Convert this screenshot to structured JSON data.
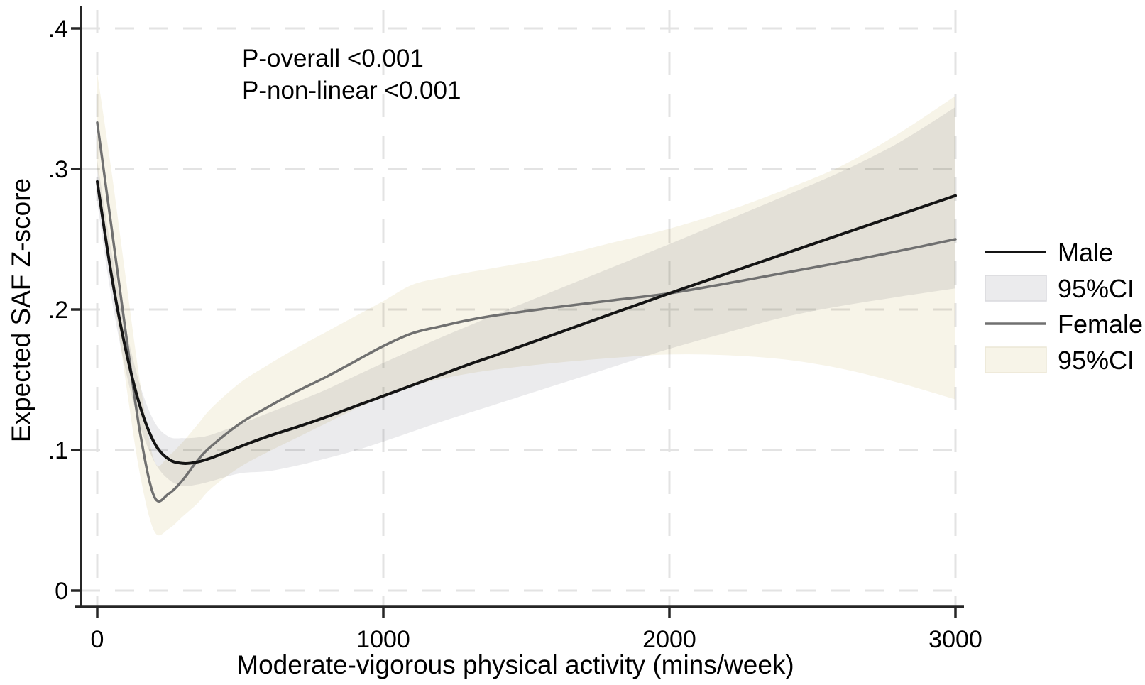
{
  "page": {
    "background": "#ffffff"
  },
  "chart_data": {
    "type": "line",
    "title": "",
    "xlabel": "Moderate-vigorous physical activity (mins/week)",
    "ylabel": "Expected SAF Z-score",
    "xlim": [
      0,
      3000
    ],
    "ylim": [
      0,
      0.4
    ],
    "grid": "dashed",
    "legend_position": "right-middle",
    "annotations": [
      "P-overall <0.001",
      "P-non-linear <0.001"
    ],
    "x_ticks": [
      {
        "v": 0,
        "label": "0"
      },
      {
        "v": 1000,
        "label": "1000"
      },
      {
        "v": 2000,
        "label": "2000"
      },
      {
        "v": 3000,
        "label": "3000"
      }
    ],
    "y_ticks": [
      {
        "v": 0,
        "label": "0"
      },
      {
        "v": 0.1,
        "label": ".1"
      },
      {
        "v": 0.2,
        "label": ".2"
      },
      {
        "v": 0.3,
        "label": ".3"
      },
      {
        "v": 0.4,
        "label": ".4"
      }
    ],
    "x": [
      0,
      50,
      100,
      150,
      200,
      250,
      300,
      350,
      400,
      500,
      600,
      700,
      800,
      900,
      1000,
      1100,
      1200,
      1300,
      1400,
      1600,
      1800,
      2000,
      2200,
      2400,
      2600,
      2800,
      3000
    ],
    "series": [
      {
        "name": "Male",
        "color": "#141414",
        "line_width": 4,
        "values": [
          0.291,
          0.224,
          0.171,
          0.131,
          0.105,
          0.0935,
          0.0905,
          0.0915,
          0.0945,
          0.1025,
          0.11,
          0.1165,
          0.1235,
          0.131,
          0.1385,
          0.146,
          0.1535,
          0.161,
          0.168,
          0.1825,
          0.197,
          0.2115,
          0.2255,
          0.2395,
          0.2535,
          0.2672,
          0.281
        ],
        "ci": {
          "label": "95%CI",
          "color": "#ebebed",
          "lower": [
            0.276,
            0.208,
            0.156,
            0.117,
            0.0915,
            0.079,
            0.0745,
            0.0755,
            0.078,
            0.0835,
            0.085,
            0.089,
            0.094,
            0.0995,
            0.106,
            0.113,
            0.12,
            0.1265,
            0.133,
            0.146,
            0.159,
            0.172,
            0.1835,
            0.1945,
            0.2025,
            0.209,
            0.215
          ],
          "upper": [
            0.306,
            0.241,
            0.187,
            0.146,
            0.12,
            0.1095,
            0.1085,
            0.109,
            0.111,
            0.1185,
            0.1265,
            0.1345,
            0.143,
            0.1525,
            0.162,
            0.171,
            0.18,
            0.1885,
            0.197,
            0.2135,
            0.23,
            0.2465,
            0.2635,
            0.2805,
            0.298,
            0.3185,
            0.344
          ]
        }
      },
      {
        "name": "Female",
        "color": "#707070",
        "line_width": 3.5,
        "values": [
          0.333,
          0.258,
          0.183,
          0.112,
          0.0665,
          0.069,
          0.079,
          0.0925,
          0.103,
          0.119,
          0.131,
          0.142,
          0.152,
          0.163,
          0.174,
          0.183,
          0.188,
          0.1925,
          0.196,
          0.2015,
          0.2065,
          0.2115,
          0.2185,
          0.226,
          0.2335,
          0.2415,
          0.25
        ],
        "ci": {
          "label": "95%CI",
          "color": "#f7f4e8",
          "lower": [
            0.3,
            0.222,
            0.148,
            0.082,
            0.042,
            0.044,
            0.053,
            0.062,
            0.073,
            0.088,
            0.099,
            0.109,
            0.119,
            0.129,
            0.138,
            0.1455,
            0.1505,
            0.1545,
            0.1575,
            0.162,
            0.1655,
            0.168,
            0.1675,
            0.1645,
            0.158,
            0.148,
            0.136
          ],
          "upper": [
            0.368,
            0.298,
            0.222,
            0.148,
            0.092,
            0.096,
            0.106,
            0.118,
            0.13,
            0.148,
            0.161,
            0.173,
            0.184,
            0.195,
            0.206,
            0.2175,
            0.2225,
            0.2265,
            0.23,
            0.2375,
            0.2475,
            0.2575,
            0.27,
            0.285,
            0.302,
            0.325,
            0.352
          ]
        }
      }
    ],
    "legend": {
      "entries": [
        {
          "label": "Male",
          "type": "line",
          "color": "#141414"
        },
        {
          "label": "95%CI",
          "type": "swatch",
          "color": "#ebebed",
          "border": "#d9d9dd"
        },
        {
          "label": "Female",
          "type": "line",
          "color": "#707070"
        },
        {
          "label": "95%CI",
          "type": "swatch",
          "color": "#f7f4e8",
          "border": "#ece7d5"
        }
      ]
    },
    "colors": {
      "axis": "#262626",
      "grid": "#e3e3e3",
      "text": "#000000",
      "background": "#ffffff"
    }
  }
}
